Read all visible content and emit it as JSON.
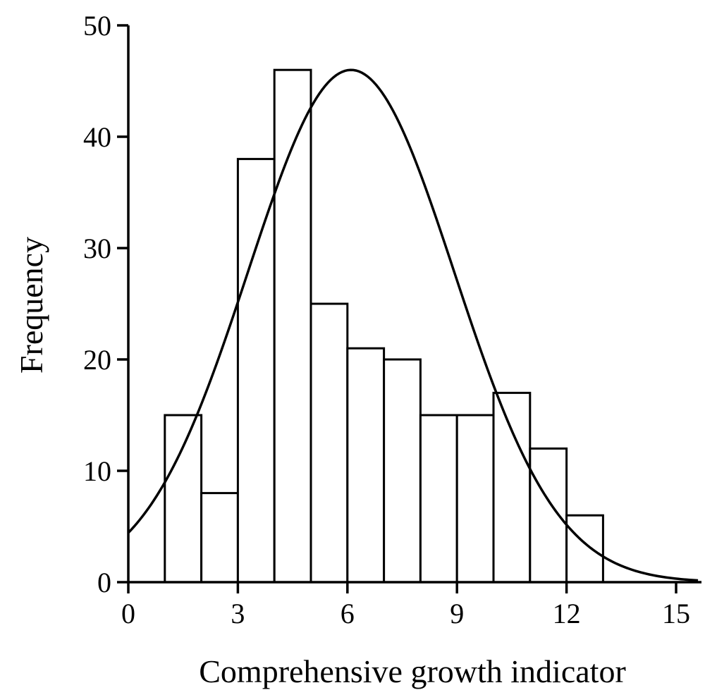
{
  "chart_data": {
    "type": "bar",
    "xlabel": "Comprehensive growth indicator",
    "ylabel": "Frequency",
    "xlim": [
      0,
      16
    ],
    "ylim": [
      0,
      50
    ],
    "x_ticks": [
      0,
      3,
      6,
      9,
      12,
      15
    ],
    "y_ticks": [
      0,
      10,
      20,
      30,
      40,
      50
    ],
    "grid": false,
    "bins": [
      {
        "start": 1,
        "end": 2,
        "value": 15
      },
      {
        "start": 2,
        "end": 3,
        "value": 8
      },
      {
        "start": 3,
        "end": 4,
        "value": 38
      },
      {
        "start": 4,
        "end": 5,
        "value": 46
      },
      {
        "start": 5,
        "end": 6,
        "value": 25
      },
      {
        "start": 6,
        "end": 7,
        "value": 21
      },
      {
        "start": 7,
        "end": 8,
        "value": 20
      },
      {
        "start": 8,
        "end": 9,
        "value": 15
      },
      {
        "start": 9,
        "end": 10,
        "value": 15
      },
      {
        "start": 10,
        "end": 11,
        "value": 17
      },
      {
        "start": 11,
        "end": 12,
        "value": 12
      },
      {
        "start": 12,
        "end": 13,
        "value": 6
      }
    ],
    "normal_curve": {
      "mean": 6.1,
      "sd": 2.82,
      "peak": 46,
      "x_range": [
        0,
        15.6
      ]
    }
  }
}
